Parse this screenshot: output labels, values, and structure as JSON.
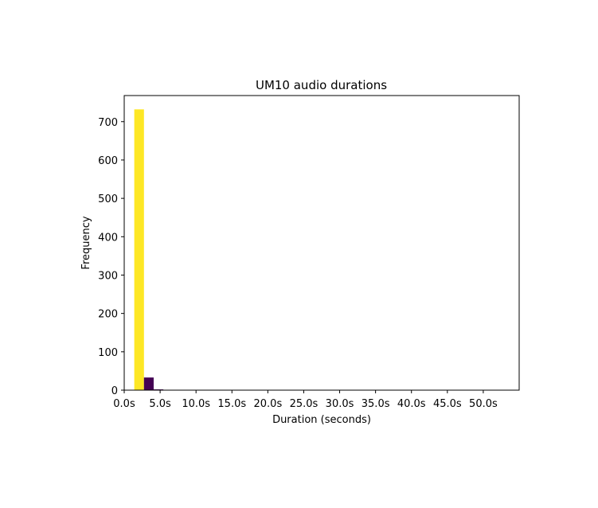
{
  "chart_data": {
    "type": "bar",
    "title": "UM10 audio durations",
    "xlabel": "Duration (seconds)",
    "ylabel": "Frequency",
    "xlim": [
      0,
      55
    ],
    "ylim": [
      0,
      768
    ],
    "grid": false,
    "legend": "none",
    "x_ticks": [
      {
        "value": 0,
        "label": "0.0s"
      },
      {
        "value": 5,
        "label": "5.0s"
      },
      {
        "value": 10,
        "label": "10.0s"
      },
      {
        "value": 15,
        "label": "15.0s"
      },
      {
        "value": 20,
        "label": "20.0s"
      },
      {
        "value": 25,
        "label": "25.0s"
      },
      {
        "value": 30,
        "label": "30.0s"
      },
      {
        "value": 35,
        "label": "35.0s"
      },
      {
        "value": 40,
        "label": "40.0s"
      },
      {
        "value": 45,
        "label": "45.0s"
      },
      {
        "value": 50,
        "label": "50.0s"
      }
    ],
    "y_ticks": [
      {
        "value": 0,
        "label": "0"
      },
      {
        "value": 100,
        "label": "100"
      },
      {
        "value": 200,
        "label": "200"
      },
      {
        "value": 300,
        "label": "300"
      },
      {
        "value": 400,
        "label": "400"
      },
      {
        "value": 500,
        "label": "500"
      },
      {
        "value": 600,
        "label": "600"
      },
      {
        "value": 700,
        "label": "700"
      }
    ],
    "bins": [
      {
        "x0": 1.4,
        "x1": 2.75,
        "count": 732,
        "color": "#fde725"
      },
      {
        "x0": 2.75,
        "x1": 4.1,
        "count": 33,
        "color": "#440154"
      },
      {
        "x0": 4.1,
        "x1": 5.45,
        "count": 2,
        "color": "#440154"
      },
      {
        "x0": 52.6,
        "x1": 53.95,
        "count": 1,
        "color": "#440154"
      }
    ]
  }
}
